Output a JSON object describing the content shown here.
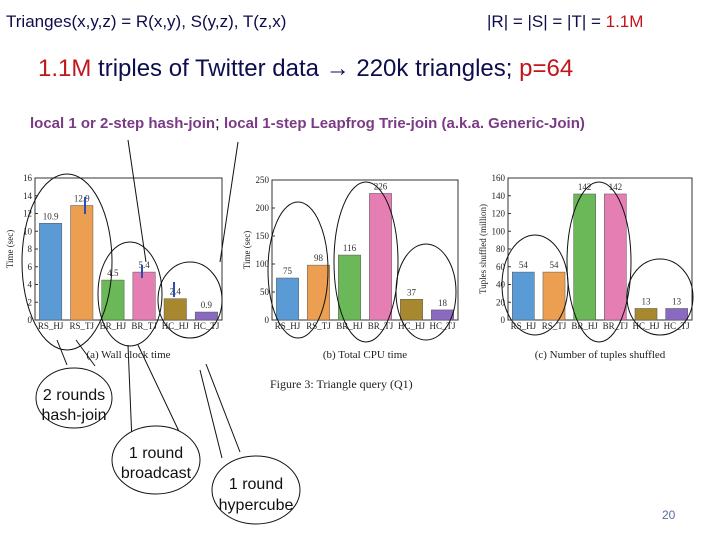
{
  "header": {
    "query": "Trianges(x,y,z) = R(x,y), S(y,z), T(z,x)",
    "sizes_prefix": "|R| = |S| = |T| = ",
    "sizes_value": "1.1M"
  },
  "subtitle": {
    "count": "1.1M",
    "text": " triples of Twitter data ",
    "arrow": "→",
    "result": " 220k triangles;   ",
    "p": "p=64"
  },
  "joins": {
    "hash": "local 1 or 2-step hash-join",
    "sep": ";",
    "leapfrog": " local 1-step Leapfrog Trie-join (a.k.a. Generic-Join)"
  },
  "figure_caption": "Figure 3:  Triangle query (Q1)",
  "chart_data": [
    {
      "type": "bar",
      "caption": "(a) Wall clock time",
      "ylabel": "Time (sec)",
      "ylim": [
        0,
        16
      ],
      "yticks": [
        0,
        2,
        4,
        6,
        8,
        10,
        12,
        14,
        16
      ],
      "categories": [
        "RS_HJ",
        "RS_TJ",
        "BR_HJ",
        "BR_TJ",
        "HC_HJ",
        "HC_TJ"
      ],
      "values": [
        10.9,
        12.9,
        4.5,
        5.4,
        2.4,
        0.9
      ],
      "labels": [
        "10.9",
        "12.9",
        "4.5",
        "5.4",
        "2.4",
        "0.9"
      ],
      "colors": [
        "#5b9bd5",
        "#ed9f51",
        "#6ab857",
        "#e57fb3",
        "#a8882f",
        "#8a6ac0"
      ]
    },
    {
      "type": "bar",
      "caption": "(b) Total CPU time",
      "ylabel": "Time (sec)",
      "ylim": [
        0,
        250
      ],
      "yticks": [
        0,
        50,
        100,
        150,
        200,
        250
      ],
      "categories": [
        "RS_HJ",
        "RS_TJ",
        "BR_HJ",
        "BR_TJ",
        "HC_HJ",
        "HC_TJ"
      ],
      "values": [
        75,
        98,
        116,
        226,
        37,
        18
      ],
      "labels": [
        "75",
        "98",
        "116",
        "226",
        "37",
        "18"
      ],
      "colors": [
        "#5b9bd5",
        "#ed9f51",
        "#6ab857",
        "#e57fb3",
        "#a8882f",
        "#8a6ac0"
      ]
    },
    {
      "type": "bar",
      "caption": "(c) Number of tuples shuffled",
      "ylabel": "Tuples shuffled (million)",
      "ylim": [
        0,
        160
      ],
      "yticks": [
        0,
        20,
        40,
        60,
        80,
        100,
        120,
        140,
        160
      ],
      "categories": [
        "RS_HJ",
        "RS_TJ",
        "BR_HJ",
        "BR_TJ",
        "HC_HJ",
        "HC_TJ"
      ],
      "values": [
        54,
        54,
        142,
        142,
        13,
        13
      ],
      "labels": [
        "54",
        "54",
        "142",
        "142",
        "13",
        "13"
      ],
      "colors": [
        "#5b9bd5",
        "#ed9f51",
        "#6ab857",
        "#e57fb3",
        "#a8882f",
        "#8a6ac0"
      ]
    }
  ],
  "callouts": {
    "rounds2": [
      "2 rounds",
      "hash-join"
    ],
    "broadcast": [
      "1 round",
      "broadcast"
    ],
    "hypercube": [
      "1 round",
      "hypercube"
    ]
  },
  "page_number": "20"
}
